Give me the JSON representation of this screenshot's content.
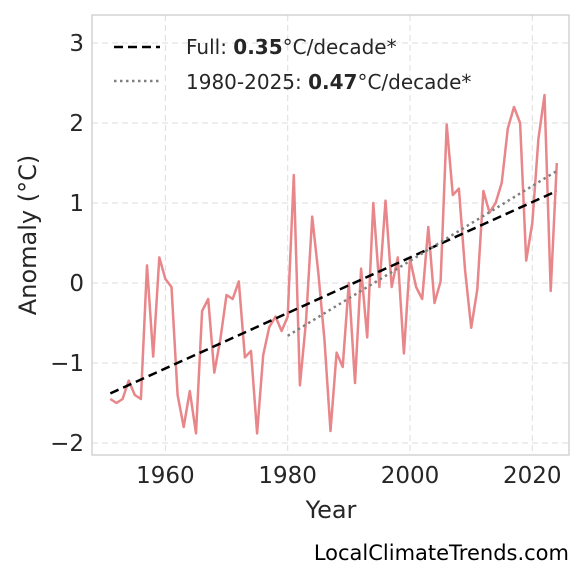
{
  "chart_data": {
    "type": "line",
    "xlabel": "Year",
    "ylabel": "Anomaly (°C)",
    "xlim": [
      1948,
      2026
    ],
    "ylim": [
      -2.15,
      3.35
    ],
    "xticks": [
      1960,
      1980,
      2000,
      2020
    ],
    "yticks": [
      -2,
      -1,
      0,
      1,
      2,
      3
    ],
    "ytick_labels": [
      "−2",
      "−1",
      "0",
      "1",
      "2",
      "3"
    ],
    "grid": true,
    "legend_position": "top-left",
    "x": [
      1951,
      1952,
      1953,
      1954,
      1955,
      1956,
      1957,
      1958,
      1959,
      1960,
      1961,
      1962,
      1963,
      1964,
      1965,
      1966,
      1967,
      1968,
      1969,
      1970,
      1971,
      1972,
      1973,
      1974,
      1975,
      1976,
      1977,
      1978,
      1979,
      1980,
      1981,
      1982,
      1983,
      1984,
      1985,
      1986,
      1987,
      1988,
      1989,
      1990,
      1991,
      1992,
      1993,
      1994,
      1995,
      1996,
      1997,
      1998,
      1999,
      2000,
      2001,
      2002,
      2003,
      2004,
      2005,
      2006,
      2007,
      2008,
      2009,
      2010,
      2011,
      2012,
      2013,
      2014,
      2015,
      2016,
      2017,
      2018,
      2019,
      2020,
      2021,
      2022,
      2023,
      2024
    ],
    "series": [
      {
        "values": [
          -1.45,
          -1.5,
          -1.45,
          -1.22,
          -1.4,
          -1.45,
          0.22,
          -0.92,
          0.32,
          0.05,
          -0.05,
          -1.4,
          -1.8,
          -1.35,
          -1.88,
          -0.35,
          -0.2,
          -1.12,
          -0.7,
          -0.15,
          -0.2,
          0.02,
          -0.93,
          -0.85,
          -1.88,
          -0.9,
          -0.55,
          -0.42,
          -0.6,
          -0.42,
          1.35,
          -1.28,
          -0.48,
          0.83,
          0.13,
          -0.7,
          -1.85,
          -0.87,
          -1.05,
          0.0,
          -1.25,
          0.18,
          -0.68,
          1.0,
          -0.05,
          1.03,
          -0.05,
          0.32,
          -0.88,
          0.3,
          -0.05,
          -0.2,
          0.7,
          -0.25,
          0.02,
          1.98,
          1.1,
          1.18,
          0.17,
          -0.56,
          -0.08,
          1.15,
          0.88,
          1.0,
          1.25,
          1.93,
          2.2,
          2.0,
          0.28,
          0.75,
          1.8,
          2.35,
          -0.1,
          1.5
        ],
        "color": "#e8868a"
      }
    ],
    "trend_lines": [
      {
        "legend_prefix": "Full: ",
        "legend_value": "0.35",
        "legend_suffix": "°C/decade*",
        "x": [
          1951,
          2024
        ],
        "y": [
          -1.38,
          1.15
        ],
        "style": "dashed",
        "color": "#000000"
      },
      {
        "legend_prefix": "1980-2025: ",
        "legend_value": "0.47",
        "legend_suffix": "°C/decade*",
        "x": [
          1980,
          2024
        ],
        "y": [
          -0.66,
          1.4
        ],
        "style": "dotted",
        "color": "#808080"
      }
    ]
  },
  "watermark": "LocalClimateTrends.com"
}
